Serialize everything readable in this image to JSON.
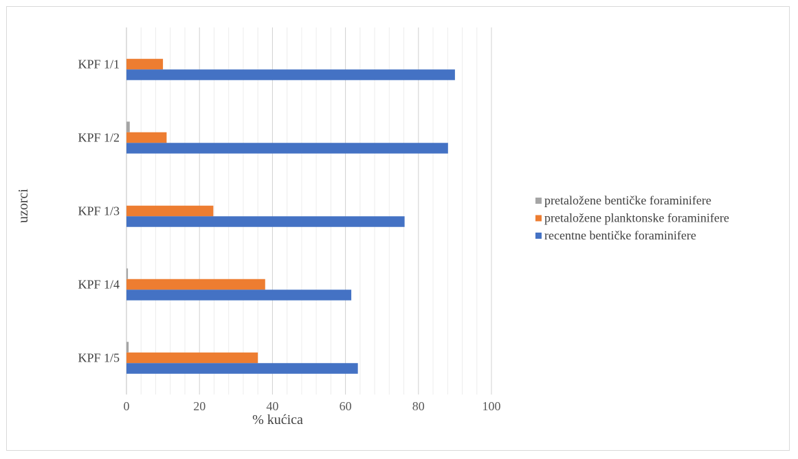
{
  "chart_data": {
    "type": "bar",
    "orientation": "horizontal",
    "categories": [
      "KPF 1/1",
      "KPF 1/2",
      "KPF 1/3",
      "KPF 1/4",
      "KPF 1/5"
    ],
    "series": [
      {
        "name": "pretaložene bentičke foraminifere",
        "color": "#a5a5a5",
        "values": [
          0,
          0.9,
          0,
          0.4,
          0.6
        ]
      },
      {
        "name": "pretaložene planktonske foraminifere",
        "color": "#ed7d31",
        "values": [
          10,
          11,
          23.8,
          38,
          36
        ]
      },
      {
        "name": "recentne bentičke foraminifere",
        "color": "#4472c4",
        "values": [
          90,
          88.1,
          76.2,
          61.6,
          63.4
        ]
      }
    ],
    "xlabel": "% kućica",
    "ylabel": "uzorci",
    "xlim": [
      0,
      100
    ],
    "xticks": [
      0,
      20,
      40,
      60,
      80,
      100
    ],
    "minor_grid_step": 4,
    "grid": true,
    "legend_position": "right"
  }
}
